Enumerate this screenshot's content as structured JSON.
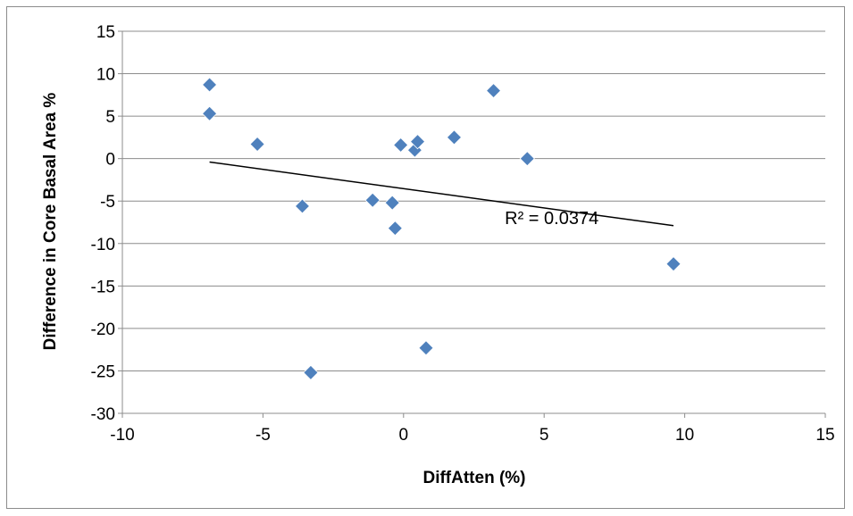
{
  "chart_data": {
    "type": "scatter",
    "title": "",
    "xlabel": "DiffAtten (%)",
    "ylabel": "Difference in Core Basal Area %",
    "xlim": [
      -10,
      15
    ],
    "ylim": [
      -30,
      15
    ],
    "x_ticks": [
      -10,
      -5,
      0,
      5,
      10,
      15
    ],
    "y_ticks": [
      15,
      10,
      5,
      0,
      -5,
      -10,
      -15,
      -20,
      -25,
      -30
    ],
    "grid": "horizontal",
    "legend": "none",
    "marker": "diamond",
    "marker_color": "#4f81bd",
    "series": [
      {
        "x": [
          -6.9,
          -6.9,
          -5.2,
          -3.6,
          -3.3,
          -1.1,
          -0.4,
          -0.3,
          -0.1,
          0.4,
          0.5,
          0.8,
          1.8,
          3.2,
          4.4,
          9.6
        ],
        "y": [
          8.7,
          5.3,
          1.7,
          -5.6,
          -25.2,
          -4.9,
          -5.2,
          -8.2,
          1.6,
          1.0,
          2.0,
          -22.3,
          2.5,
          8.0,
          0.0,
          -12.4
        ]
      }
    ],
    "trendline": {
      "type": "linear",
      "x": [
        -6.9,
        9.6
      ],
      "y": [
        -0.4,
        -7.9
      ],
      "color": "#000000"
    },
    "annotations": [
      {
        "text": "R² = 0.0374",
        "x": 3.6,
        "y": -7.7
      }
    ]
  }
}
